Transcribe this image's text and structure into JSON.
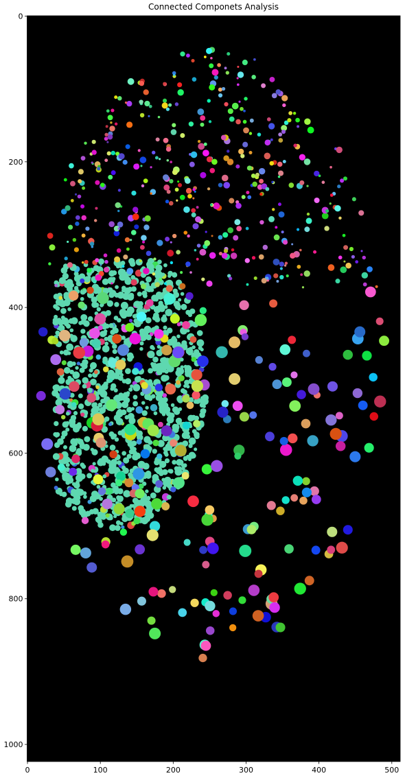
{
  "chart_data": {
    "type": "image",
    "title": "Connected Componets Analysis",
    "xlim": [
      -0.5,
      511.5
    ],
    "ylim": [
      1023.5,
      -0.5
    ],
    "xticks": [
      0,
      100,
      200,
      300,
      400,
      500
    ],
    "yticks": [
      0,
      200,
      400,
      600,
      800,
      1000
    ],
    "background": "#000000"
  }
}
